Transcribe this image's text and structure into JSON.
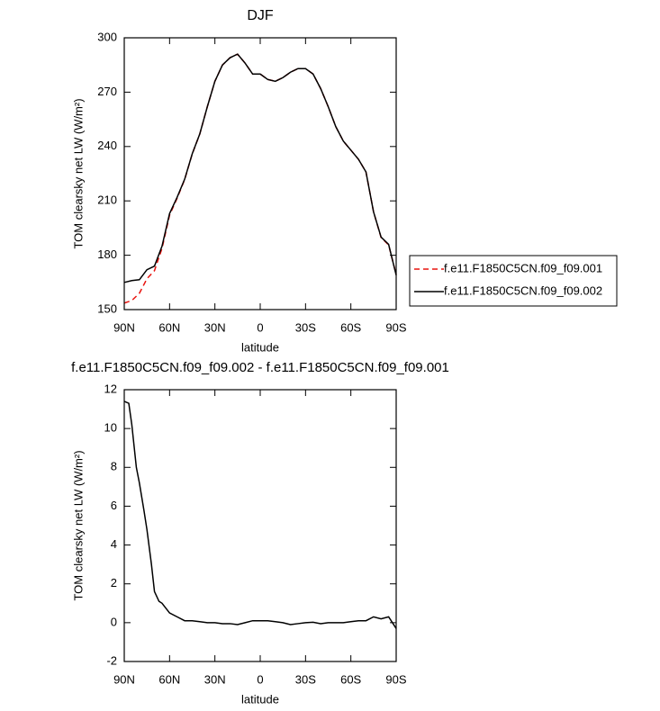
{
  "chart_data": [
    {
      "type": "line",
      "title": "DJF",
      "xlabel": "latitude",
      "ylabel": "TOM clearsky net LW (W/m²)",
      "x": [
        90,
        85,
        80,
        75,
        70,
        65,
        60,
        55,
        50,
        45,
        40,
        35,
        30,
        25,
        20,
        15,
        10,
        5,
        0,
        -5,
        -10,
        -15,
        -20,
        -25,
        -30,
        -35,
        -40,
        -45,
        -50,
        -55,
        -60,
        -65,
        -70,
        -75,
        -80,
        -85,
        -90
      ],
      "series": [
        {
          "name": "f.e11.F1850C5CN.f09_f09.001",
          "color": "#e8140f",
          "dashed": true,
          "values": [
            153.6,
            155,
            159,
            167,
            171.5,
            183.8,
            202.1,
            211.5,
            221.8,
            235.9,
            246.9,
            262,
            276,
            285,
            289,
            291,
            286,
            280,
            280,
            277,
            276,
            278,
            281,
            283,
            283,
            280,
            272,
            262,
            251,
            243,
            238,
            233,
            226,
            204,
            189.8,
            185.7,
            169.3
          ]
        },
        {
          "name": "f.e11.F1850C5CN.f09_f09.002",
          "color": "#000000",
          "dashed": false,
          "values": [
            165,
            166,
            166.5,
            172,
            174,
            185,
            203,
            212,
            222,
            236,
            247,
            262,
            276,
            285,
            289,
            291,
            286,
            280,
            280,
            277,
            276,
            278,
            281,
            283,
            283,
            280,
            272,
            262,
            251,
            243,
            238,
            233,
            226,
            204,
            190,
            186,
            169
          ]
        }
      ],
      "xlim": [
        90,
        -90
      ],
      "xticks": [
        {
          "value": 90,
          "label": "90N"
        },
        {
          "value": 60,
          "label": "60N"
        },
        {
          "value": 30,
          "label": "30N"
        },
        0,
        {
          "value": -30,
          "label": "30S"
        },
        {
          "value": -60,
          "label": "60S"
        },
        {
          "value": -90,
          "label": "90S"
        }
      ],
      "ylim": [
        150,
        300
      ],
      "yticks": [
        150,
        180,
        210,
        240,
        270,
        300
      ],
      "legend": "right"
    },
    {
      "type": "line",
      "title": "f.e11.F1850C5CN.f09_f09.002 - f.e11.F1850C5CN.f09_f09.001",
      "xlabel": "latitude",
      "ylabel": "TOM clearsky net LW (W/m²)",
      "x": [
        90,
        87,
        85,
        82,
        80,
        77,
        75,
        72,
        70,
        67,
        65,
        60,
        55,
        50,
        45,
        40,
        35,
        30,
        25,
        20,
        15,
        10,
        5,
        0,
        -5,
        -10,
        -15,
        -20,
        -25,
        -30,
        -35,
        -40,
        -45,
        -50,
        -55,
        -60,
        -65,
        -70,
        -75,
        -80,
        -85,
        -90
      ],
      "series": [
        {
          "color": "#000000",
          "dashed": false,
          "values": [
            11.4,
            11.3,
            10.2,
            8,
            7.2,
            5.8,
            4.8,
            3,
            1.6,
            1.1,
            1.0,
            0.5,
            0.3,
            0.1,
            0.1,
            0.05,
            0,
            0,
            -0.05,
            -0.05,
            -0.1,
            0,
            0.1,
            0.1,
            0.1,
            0.05,
            0,
            -0.1,
            -0.05,
            0,
            0.02,
            -0.05,
            0,
            0,
            0,
            0.05,
            0.1,
            0.1,
            0.3,
            0.2,
            0.3,
            -0.3
          ]
        }
      ],
      "xlim": [
        90,
        -90
      ],
      "xticks": [
        {
          "value": 90,
          "label": "90N"
        },
        {
          "value": 60,
          "label": "60N"
        },
        {
          "value": 30,
          "label": "30N"
        },
        0,
        {
          "value": -30,
          "label": "30S"
        },
        {
          "value": -60,
          "label": "60S"
        },
        {
          "value": -90,
          "label": "90S"
        }
      ],
      "ylim": [
        -2,
        12
      ],
      "yticks": [
        -2,
        0,
        2,
        4,
        6,
        8,
        10,
        12
      ]
    }
  ]
}
